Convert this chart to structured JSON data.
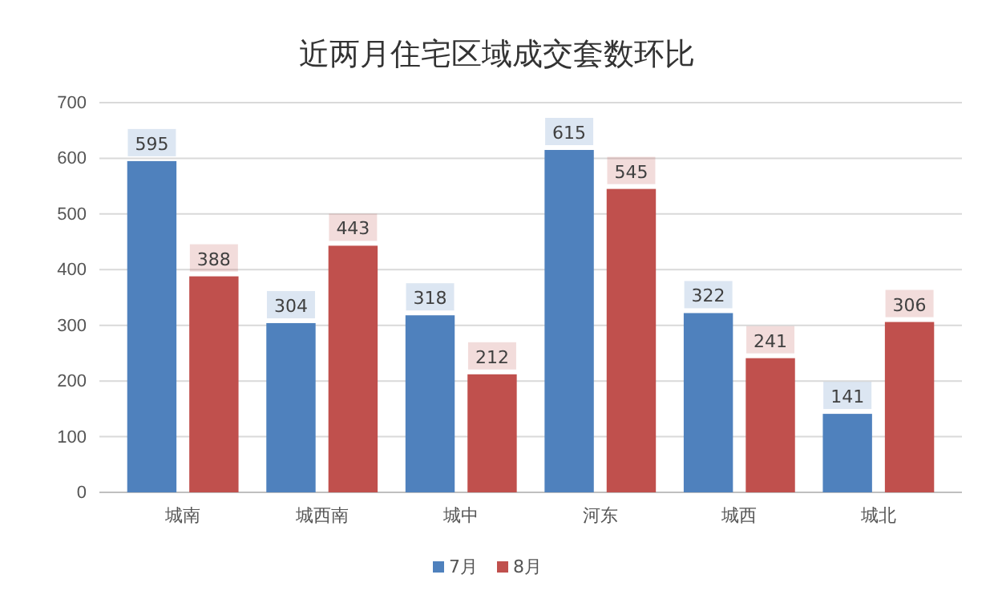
{
  "chart_data": {
    "type": "bar",
    "title": "近两月住宅区域成交套数环比",
    "categories": [
      "城南",
      "城西南",
      "城中",
      "河东",
      "城西",
      "城北"
    ],
    "series": [
      {
        "name": "7月",
        "color": "#4f81bd",
        "values": [
          595,
          304,
          318,
          615,
          322,
          141
        ]
      },
      {
        "name": "8月",
        "color": "#c0504d",
        "values": [
          388,
          443,
          212,
          545,
          241,
          306
        ]
      }
    ],
    "ylim": [
      0,
      700
    ],
    "yticks": [
      0,
      100,
      200,
      300,
      400,
      500,
      600,
      700
    ],
    "grid": "y",
    "legend": "bottom",
    "data_labels": true
  }
}
